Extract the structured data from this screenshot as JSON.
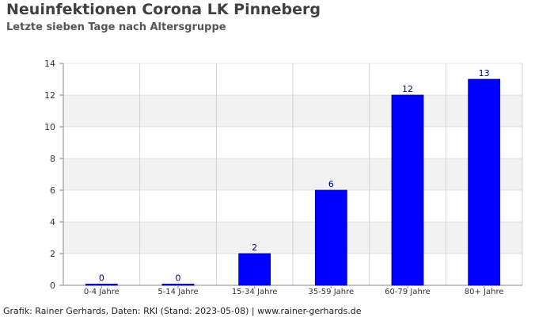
{
  "header": {
    "title": "Neuinfektionen Corona LK Pinneberg",
    "subtitle": "Letzte sieben Tage nach Altersgruppe"
  },
  "footer": {
    "credit": "Grafik: Rainer Gerhards, Daten: RKI (Stand: 2023-05-08) | www.rainer-gerhards.de"
  },
  "chart_data": {
    "type": "bar",
    "title": "Neuinfektionen Corona LK Pinneberg",
    "subtitle": "Letzte sieben Tage nach Altersgruppe",
    "xlabel": "",
    "ylabel": "",
    "categories": [
      "0-4 Jahre",
      "5-14 Jahre",
      "15-34 Jahre",
      "35-59 Jahre",
      "60-79 Jahre",
      "80+ Jahre"
    ],
    "values": [
      0,
      0,
      2,
      6,
      12,
      13
    ],
    "data_labels": [
      "0",
      "0",
      "2",
      "6",
      "12",
      "13"
    ],
    "ylim": [
      0,
      14
    ],
    "yticks": [
      "0",
      "2",
      "4",
      "6",
      "8",
      "10",
      "12",
      "14"
    ],
    "grid": true,
    "legend": "none",
    "colors": {
      "bar_fill": "#0000ff",
      "bar_stroke": "#000080",
      "data_label": "#000080",
      "band": "#f2f2f2",
      "grid": "#cccccc",
      "axis": "#888888",
      "tick_label": "#333333"
    }
  }
}
